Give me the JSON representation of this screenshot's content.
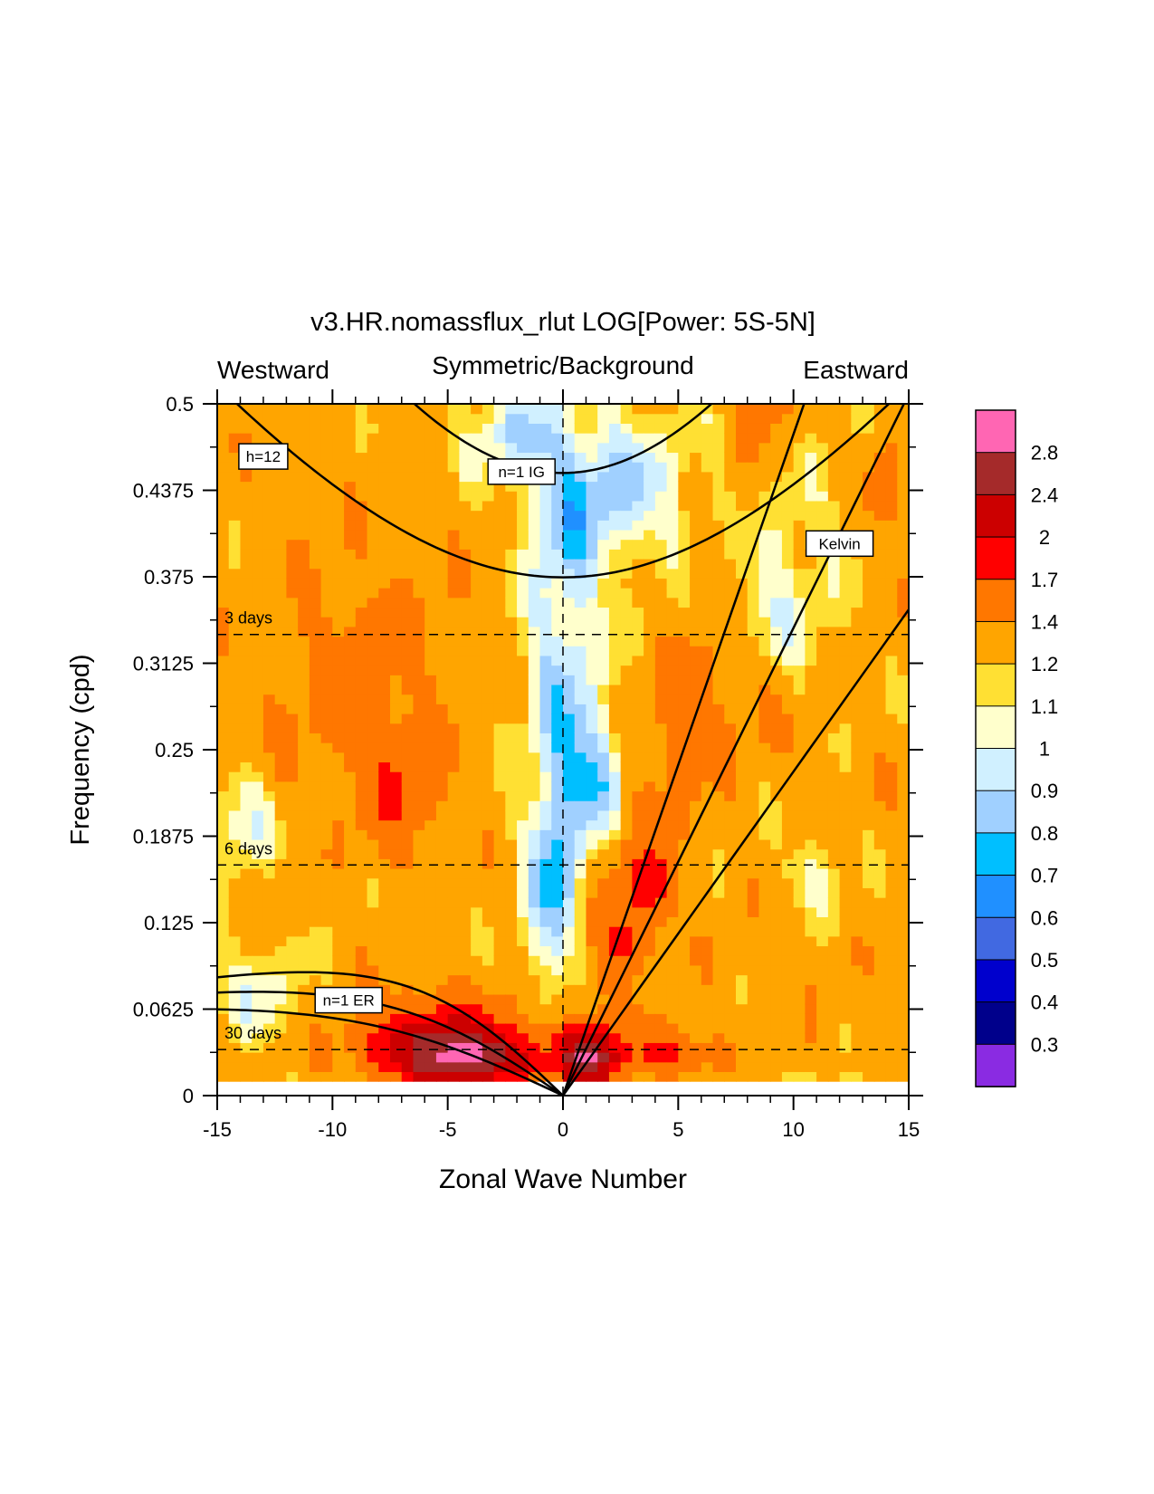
{
  "chart_data": {
    "type": "heatmap",
    "title": "v3.HR.nomassflux_rlut LOG[Power: 5S-5N]",
    "top_labels": {
      "left": "Westward",
      "center": "Symmetric/Background",
      "right": "Eastward"
    },
    "xlabel": "Zonal Wave Number",
    "ylabel": "Frequency (cpd)",
    "xlim": [
      -15,
      15
    ],
    "ylim": [
      0,
      0.5
    ],
    "x_ticks": [
      "-15",
      "-10",
      "-5",
      "0",
      "5",
      "10",
      "15"
    ],
    "x_tick_values": [
      -15,
      -10,
      -5,
      0,
      5,
      10,
      15
    ],
    "y_ticks": [
      "0",
      "0.0625",
      "0.125",
      "0.1875",
      "0.25",
      "0.3125",
      "0.375",
      "0.4375",
      "0.5"
    ],
    "y_tick_values": [
      0,
      0.0625,
      0.125,
      0.1875,
      0.25,
      0.3125,
      0.375,
      0.4375,
      0.5
    ],
    "period_lines": [
      {
        "label": "3 days",
        "freq": 0.3333
      },
      {
        "label": "6 days",
        "freq": 0.1667
      },
      {
        "label": "30 days",
        "freq": 0.0333
      }
    ],
    "wave_labels": [
      {
        "text": "h=12",
        "x": -13.0,
        "y": 0.462
      },
      {
        "text": "n=1 IG",
        "x": -1.8,
        "y": 0.451
      },
      {
        "text": "Kelvin",
        "x": 12.0,
        "y": 0.399
      },
      {
        "text": "n=1 ER",
        "x": -9.3,
        "y": 0.069
      }
    ],
    "colorbar": {
      "labels": [
        "2.8",
        "2.4",
        "2",
        "1.7",
        "1.4",
        "1.2",
        "1.1",
        "1",
        "0.9",
        "0.8",
        "0.7",
        "0.6",
        "0.5",
        "0.4",
        "0.3"
      ],
      "colors": [
        "#ff66b3",
        "#a52a2a",
        "#cc0000",
        "#ff0000",
        "#ff7700",
        "#ffa500",
        "#ffe033",
        "#ffffcc",
        "#d0f0ff",
        "#a0d0ff",
        "#00bfff",
        "#2090ff",
        "#4169e1",
        "#0000cd",
        "#00008b",
        "#8a2be2"
      ]
    },
    "field_features": [
      {
        "x": -4.0,
        "y": 0.027,
        "sx": 2.2,
        "sy": 0.014,
        "a": 1.25
      },
      {
        "x": -5.5,
        "y": 0.045,
        "sx": 1.8,
        "sy": 0.018,
        "a": 0.55
      },
      {
        "x": 1.1,
        "y": 0.027,
        "sx": 0.8,
        "sy": 0.016,
        "a": 1.45
      },
      {
        "x": 3.8,
        "y": 0.15,
        "sx": 0.7,
        "sy": 0.016,
        "a": 0.45
      },
      {
        "x": 2.8,
        "y": 0.112,
        "sx": 0.6,
        "sy": 0.014,
        "a": 0.35
      },
      {
        "x": 4.5,
        "y": 0.03,
        "sx": 1.4,
        "sy": 0.012,
        "a": 0.5
      },
      {
        "x": -7.0,
        "y": 0.22,
        "sx": 1.2,
        "sy": 0.03,
        "a": 0.35
      },
      {
        "x": -9.0,
        "y": 0.3,
        "sx": 2.5,
        "sy": 0.06,
        "a": 0.2
      },
      {
        "x": 0.0,
        "y": 0.3,
        "sx": 1.3,
        "sy": 0.12,
        "a": -0.4
      },
      {
        "x": 1.6,
        "y": 0.23,
        "sx": 1.1,
        "sy": 0.03,
        "a": -0.35
      },
      {
        "x": -0.5,
        "y": 0.14,
        "sx": 0.9,
        "sy": 0.05,
        "a": -0.35
      },
      {
        "x": 2.0,
        "y": 0.44,
        "sx": 2.2,
        "sy": 0.04,
        "a": -0.38
      },
      {
        "x": -2.5,
        "y": 0.48,
        "sx": 1.5,
        "sy": 0.025,
        "a": -0.3
      },
      {
        "x": 8.5,
        "y": 0.38,
        "sx": 2.5,
        "sy": 0.08,
        "a": -0.3
      },
      {
        "x": -14.0,
        "y": 0.2,
        "sx": 1.0,
        "sy": 0.03,
        "a": -0.3
      },
      {
        "x": 11.0,
        "y": 0.16,
        "sx": 1.0,
        "sy": 0.02,
        "a": -0.25
      },
      {
        "x": 14.0,
        "y": 0.44,
        "sx": 0.6,
        "sy": 0.02,
        "a": 0.3
      },
      {
        "x": 8.0,
        "y": 0.28,
        "sx": 1.5,
        "sy": 0.03,
        "a": 0.25
      },
      {
        "x": -13.0,
        "y": 0.07,
        "sx": 1.8,
        "sy": 0.03,
        "a": -0.25
      }
    ]
  }
}
